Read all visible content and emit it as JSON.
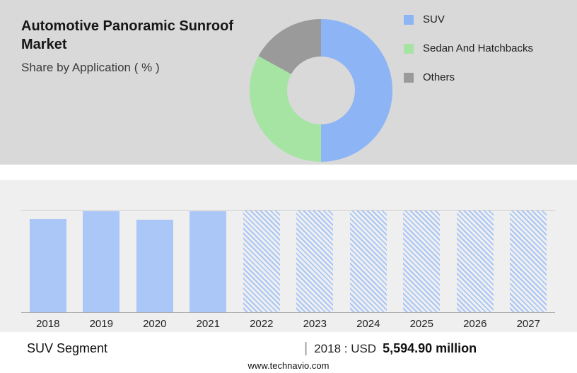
{
  "header": {
    "title": "Automotive Panoramic Sunroof Market",
    "subtitle": "Share by Application ( % )"
  },
  "colors": {
    "top_band_bg": "#d9d9d9",
    "chart_band_bg": "#efefef",
    "suv_blue": "#8DB4F5",
    "sedan_green": "#A6E4A4",
    "others_gray": "#9A9A9A",
    "bar_blue": "#ABC7F7"
  },
  "chart_data": [
    {
      "type": "pie",
      "donut": true,
      "title": "Share by Application ( % )",
      "labels": [
        "SUV",
        "Sedan And Hatchbacks",
        "Others"
      ],
      "values": [
        50,
        33,
        17
      ],
      "colors": [
        "#8DB4F5",
        "#A6E4A4",
        "#9A9A9A"
      ],
      "legend_position": "right"
    },
    {
      "type": "bar",
      "categories": [
        "2018",
        "2019",
        "2020",
        "2021",
        "2022",
        "2023",
        "2024",
        "2025",
        "2026",
        "2027"
      ],
      "values": [
        92,
        99,
        91,
        99,
        100,
        100,
        100,
        100,
        100,
        100
      ],
      "value_unit": "relative bar height, % of plot area (y-axis unlabeled)",
      "ylim": [
        0,
        100
      ],
      "forecast_from_index": 4,
      "bar_color": "#ABC7F7",
      "pattern_note": "2022-2027 bars are diagonal-hatched forecast bars",
      "known_point": {
        "year": "2018",
        "value_label": "USD 5,594.90 million"
      },
      "grid": "single top gridline and baseline"
    }
  ],
  "footer": {
    "segment_label": "SUV Segment",
    "separator": "|",
    "value_prefix": "2018 : USD",
    "value_bold": "5,594.90 million",
    "website": "www.technavio.com"
  }
}
